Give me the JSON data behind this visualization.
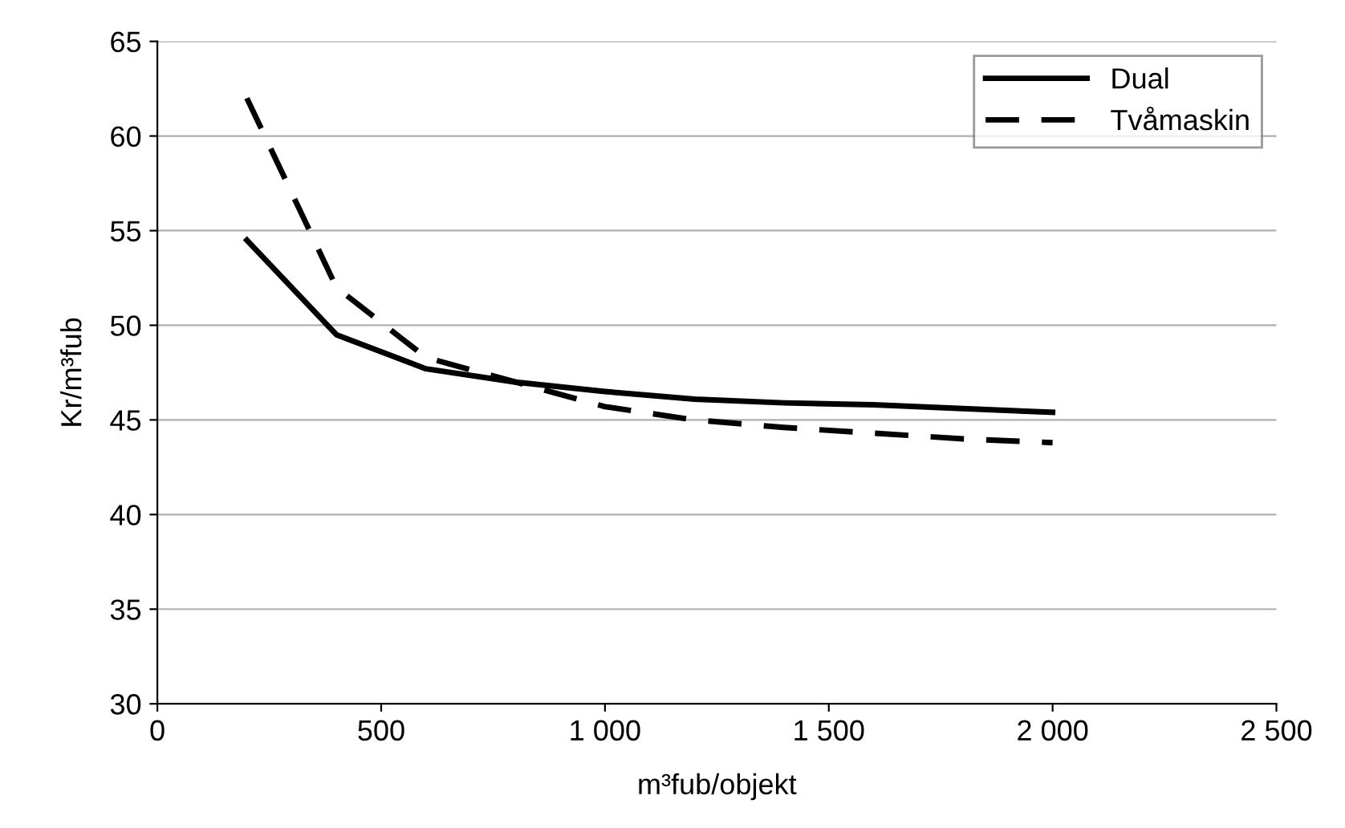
{
  "chart_data": {
    "type": "line",
    "xlabel": "m³fub/objekt",
    "ylabel": "Kr/m³fub",
    "x": [
      200,
      400,
      600,
      800,
      1000,
      1200,
      1400,
      1600,
      1800,
      2000
    ],
    "series": [
      {
        "name": "Dual",
        "color": "#000000",
        "line_style": "solid",
        "values": [
          54.5,
          49.5,
          47.7,
          47.0,
          46.5,
          46.1,
          45.9,
          45.8,
          45.6,
          45.4
        ]
      },
      {
        "name": "Tvåmaskin",
        "color": "#000000",
        "line_style": "dashed",
        "values": [
          62.0,
          52.0,
          48.3,
          47.0,
          45.7,
          45.0,
          44.6,
          44.3,
          44.0,
          43.8
        ]
      }
    ],
    "xlim": [
      0,
      2500
    ],
    "xticks": [
      0,
      500,
      {
        "value": 1000,
        "label": "1 000"
      },
      {
        "value": 1500,
        "label": "1 500"
      },
      {
        "value": 2000,
        "label": "2 000"
      },
      {
        "value": 2500,
        "label": "2 500"
      }
    ],
    "ylim": [
      30,
      65
    ],
    "yticks": [
      30,
      35,
      40,
      45,
      50,
      55,
      60,
      65
    ],
    "grid": "y",
    "legend": "top right",
    "marker": "none"
  }
}
